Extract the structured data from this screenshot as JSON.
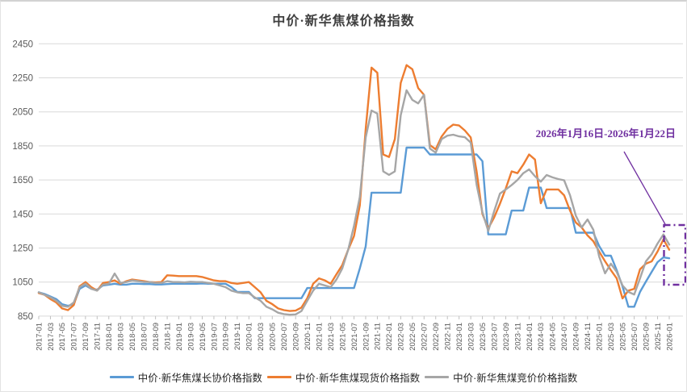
{
  "title": "中价·新华焦煤价格指数",
  "annotation": {
    "text": "2026年1月16日-2026年1月22日",
    "color": "#7030A0"
  },
  "axis_style": {
    "grid_color": "#D9D9D9",
    "tick_color": "#BFBFBF",
    "label_color": "#595959"
  },
  "chart_data": {
    "type": "line",
    "title": "中价·新华焦煤价格指数",
    "grid": "horizontal",
    "legend_position": "bottom",
    "ylim": [
      850,
      2450
    ],
    "y_ticks": [
      850,
      1050,
      1250,
      1450,
      1650,
      1850,
      2050,
      2250,
      2450
    ],
    "x_ticks_every": 2,
    "x": [
      "2017-01",
      "2017-02",
      "2017-03",
      "2017-04",
      "2017-05",
      "2017-06",
      "2017-07",
      "2017-08",
      "2017-09",
      "2017-10",
      "2017-11",
      "2017-12",
      "2018-01",
      "2018-02",
      "2018-03",
      "2018-04",
      "2018-05",
      "2018-06",
      "2018-07",
      "2018-08",
      "2018-09",
      "2018-10",
      "2018-11",
      "2018-12",
      "2019-01",
      "2019-02",
      "2019-03",
      "2019-04",
      "2019-05",
      "2019-06",
      "2019-07",
      "2019-08",
      "2019-09",
      "2019-10",
      "2019-11",
      "2019-12",
      "2020-01",
      "2020-02",
      "2020-03",
      "2020-04",
      "2020-05",
      "2020-06",
      "2020-07",
      "2020-08",
      "2020-09",
      "2020-10",
      "2020-11",
      "2020-12",
      "2021-01",
      "2021-02",
      "2021-03",
      "2021-04",
      "2021-05",
      "2021-06",
      "2021-07",
      "2021-08",
      "2021-09",
      "2021-10",
      "2021-11",
      "2021-12",
      "2022-01",
      "2022-02",
      "2022-03",
      "2022-04",
      "2022-05",
      "2022-06",
      "2022-07",
      "2022-08",
      "2022-09",
      "2022-10",
      "2022-11",
      "2022-12",
      "2023-01",
      "2023-02",
      "2023-03",
      "2023-04",
      "2023-05",
      "2023-06",
      "2023-07",
      "2023-08",
      "2023-09",
      "2023-10",
      "2023-11",
      "2023-12",
      "2024-01",
      "2024-02",
      "2024-03",
      "2024-04",
      "2024-05",
      "2024-06",
      "2024-07",
      "2024-08",
      "2024-09",
      "2024-10",
      "2024-11",
      "2024-12",
      "2025-01",
      "2025-02",
      "2025-03",
      "2025-04",
      "2025-05",
      "2025-06",
      "2025-07",
      "2025-08",
      "2025-09",
      "2025-10",
      "2025-11",
      "2025-12",
      "2026-01"
    ],
    "series": [
      {
        "name": "中价·新华焦煤长协价格指数",
        "color": "#5B9BD5",
        "values": [
          990,
          980,
          965,
          950,
          920,
          910,
          920,
          1010,
          1030,
          1010,
          1005,
          1030,
          1035,
          1040,
          1035,
          1035,
          1040,
          1040,
          1038,
          1038,
          1036,
          1036,
          1038,
          1040,
          1040,
          1040,
          1040,
          1040,
          1042,
          1040,
          1040,
          1040,
          1040,
          1020,
          992,
          992,
          992,
          955,
          955,
          955,
          955,
          955,
          955,
          955,
          955,
          955,
          1015,
          1015,
          1015,
          1015,
          1015,
          1015,
          1015,
          1015,
          1015,
          1130,
          1260,
          1575,
          1575,
          1575,
          1575,
          1575,
          1575,
          1840,
          1840,
          1840,
          1840,
          1800,
          1800,
          1800,
          1800,
          1800,
          1800,
          1800,
          1800,
          1800,
          1760,
          1330,
          1330,
          1330,
          1330,
          1470,
          1470,
          1470,
          1605,
          1605,
          1605,
          1485,
          1485,
          1485,
          1485,
          1485,
          1340,
          1340,
          1340,
          1340,
          1262,
          1205,
          1205,
          1120,
          1025,
          905,
          905,
          992,
          1053,
          1110,
          1167,
          1195,
          1190
        ]
      },
      {
        "name": "中价·新华焦煤现货价格指数",
        "color": "#ED7D31",
        "values": [
          985,
          975,
          950,
          930,
          895,
          885,
          915,
          1025,
          1050,
          1020,
          1000,
          1045,
          1050,
          1060,
          1040,
          1055,
          1065,
          1060,
          1055,
          1050,
          1048,
          1050,
          1090,
          1088,
          1085,
          1085,
          1085,
          1085,
          1080,
          1070,
          1060,
          1055,
          1055,
          1045,
          1040,
          1045,
          1050,
          1020,
          990,
          940,
          920,
          895,
          885,
          880,
          882,
          900,
          955,
          1040,
          1072,
          1060,
          1040,
          1096,
          1150,
          1240,
          1320,
          1500,
          1950,
          2310,
          2280,
          1800,
          1785,
          1890,
          2220,
          2325,
          2300,
          2190,
          2150,
          1855,
          1830,
          1905,
          1950,
          1975,
          1970,
          1940,
          1900,
          1700,
          1450,
          1365,
          1430,
          1510,
          1600,
          1700,
          1690,
          1740,
          1800,
          1770,
          1513,
          1594,
          1594,
          1594,
          1560,
          1470,
          1400,
          1371,
          1324,
          1290,
          1229,
          1172,
          1120,
          1072,
          954,
          1000,
          1010,
          1125,
          1158,
          1172,
          1229,
          1300,
          1240
        ]
      },
      {
        "name": "中价·新华焦煤竞价价格指数",
        "color": "#A6A6A6",
        "values": [
          990,
          975,
          960,
          940,
          910,
          905,
          930,
          1020,
          1040,
          1010,
          1000,
          1035,
          1040,
          1100,
          1045,
          1050,
          1060,
          1055,
          1050,
          1050,
          1045,
          1045,
          1055,
          1050,
          1050,
          1048,
          1052,
          1050,
          1050,
          1045,
          1040,
          1030,
          1020,
          1000,
          990,
          985,
          985,
          960,
          940,
          905,
          890,
          870,
          862,
          858,
          860,
          880,
          940,
          1000,
          1040,
          1030,
          1020,
          1065,
          1130,
          1240,
          1380,
          1550,
          1900,
          2058,
          2040,
          1700,
          1680,
          1700,
          2030,
          2177,
          2120,
          2100,
          2150,
          1835,
          1810,
          1890,
          1910,
          1916,
          1906,
          1901,
          1870,
          1622,
          1460,
          1350,
          1466,
          1570,
          1594,
          1620,
          1650,
          1690,
          1712,
          1672,
          1640,
          1679,
          1665,
          1655,
          1648,
          1560,
          1440,
          1371,
          1418,
          1357,
          1200,
          1101,
          1158,
          1110,
          1030,
          992,
          977,
          1072,
          1172,
          1214,
          1276,
          1330,
          1270
        ]
      }
    ]
  }
}
